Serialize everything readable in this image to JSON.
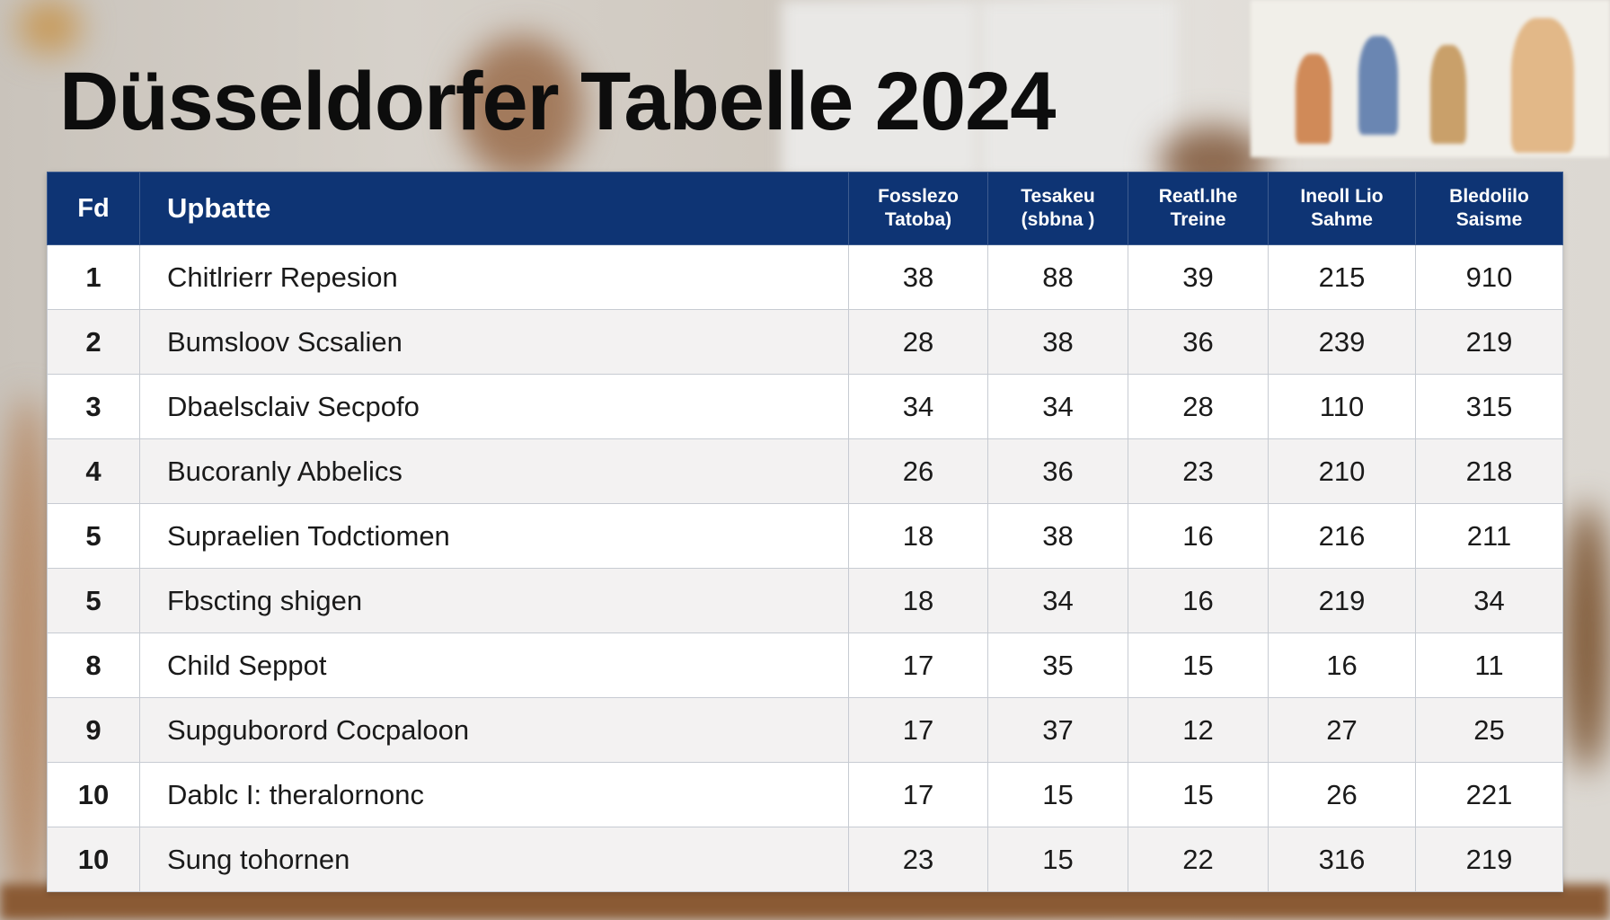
{
  "title": "Düsseldorfer Tabelle 2024",
  "colors": {
    "header_bg": "#0e3474",
    "header_text": "#ffffff",
    "row_alt": "#f3f2f2",
    "grid": "#c7cbd2"
  },
  "table": {
    "headers": [
      {
        "line1": "Fd",
        "line2": ""
      },
      {
        "line1": "Upbatte",
        "line2": ""
      },
      {
        "line1": "Fosslezo",
        "line2": "Tatoba)"
      },
      {
        "line1": "Tesakeu",
        "line2": "(sbbna )"
      },
      {
        "line1": "Reatl.Ihe",
        "line2": "Treine"
      },
      {
        "line1": "Ineoll Lio",
        "line2": "Sahme"
      },
      {
        "line1": "Bledolilo",
        "line2": "Saisme"
      }
    ],
    "rows": [
      [
        "1",
        "Chitlrierr Repesion",
        "38",
        "88",
        "39",
        "215",
        "910"
      ],
      [
        "2",
        "Bumsloov Scsalien",
        "28",
        "38",
        "36",
        "239",
        "219"
      ],
      [
        "3",
        "Dbaelsclaiv Secpofo",
        "34",
        "34",
        "28",
        "110",
        "315"
      ],
      [
        "4",
        "Bucoranly Abbelics",
        "26",
        "36",
        "23",
        "210",
        "218"
      ],
      [
        "5",
        "Supraelien Todctiomen",
        "18",
        "38",
        "16",
        "216",
        "211"
      ],
      [
        "5",
        "Fbscting shigen",
        "18",
        "34",
        "16",
        "219",
        "34"
      ],
      [
        "8",
        "Child Seppot",
        "17",
        "35",
        "15",
        "16",
        "11"
      ],
      [
        "9",
        "Supguborord Cocpaloon",
        "17",
        "37",
        "12",
        "27",
        "25"
      ],
      [
        "10",
        "Dablc I: theralornonc",
        "17",
        "15",
        "15",
        "26",
        "221"
      ],
      [
        "10",
        "Sung tohornen",
        "23",
        "15",
        "22",
        "316",
        "219"
      ]
    ]
  }
}
